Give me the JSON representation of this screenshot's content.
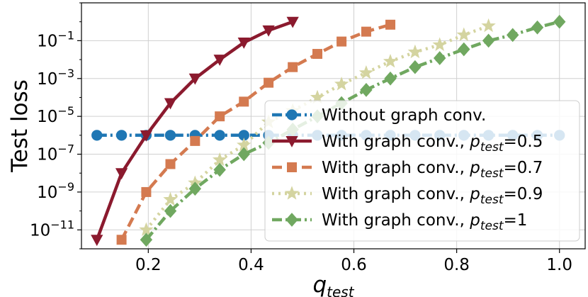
{
  "chart_data": {
    "type": "line",
    "title": "",
    "xlabel": {
      "base": "q",
      "sub": "test"
    },
    "ylabel": "Test loss",
    "yscale": "log",
    "xlim": [
      0.07,
      1.05
    ],
    "ylim": [
      1e-12,
      10
    ],
    "grid": true,
    "legend_position": "lower-right",
    "x_ticks": [
      {
        "value": 0.2,
        "label": "0.2"
      },
      {
        "value": 0.4,
        "label": "0.4"
      },
      {
        "value": 0.6,
        "label": "0.6"
      },
      {
        "value": 0.8,
        "label": "0.8"
      },
      {
        "value": 1.0,
        "label": "1.0"
      }
    ],
    "y_ticks": [
      {
        "value": 1e-11,
        "label_base": "10",
        "label_exp": "−11"
      },
      {
        "value": 1e-09,
        "label_base": "10",
        "label_exp": "−9"
      },
      {
        "value": 1e-07,
        "label_base": "10",
        "label_exp": "−7"
      },
      {
        "value": 1e-05,
        "label_base": "10",
        "label_exp": "−5"
      },
      {
        "value": 0.001,
        "label_base": "10",
        "label_exp": "−3"
      },
      {
        "value": 0.1,
        "label_base": "10",
        "label_exp": "−1"
      }
    ],
    "series": [
      {
        "name": "Without graph conv.",
        "legend_prefix": "Without graph conv.",
        "legend_sub": "",
        "legend_suffix": "",
        "color": "#1f77b4",
        "marker": "circle",
        "dash": "dashdot",
        "x": [
          0.1,
          0.148,
          0.196,
          0.243,
          0.291,
          0.339,
          0.386,
          0.434,
          0.481,
          0.529,
          0.576,
          0.624,
          0.671,
          0.719,
          0.767,
          0.814,
          0.862,
          0.909,
          0.957,
          1.0
        ],
        "y": [
          1e-06,
          1e-06,
          1e-06,
          1e-06,
          1e-06,
          1e-06,
          1e-06,
          1e-06,
          1e-06,
          1e-06,
          1e-06,
          1e-06,
          1e-06,
          1e-06,
          1e-06,
          1e-06,
          1e-06,
          1e-06,
          1e-06,
          1e-06
        ]
      },
      {
        "name": "With graph conv., p_test=0.5",
        "legend_prefix": "With graph conv., ",
        "legend_sub": "test",
        "legend_suffix": "=0.5",
        "color": "#8b1a2e",
        "marker": "triangle-down",
        "dash": "solid",
        "x": [
          0.1,
          0.148,
          0.196,
          0.243,
          0.291,
          0.339,
          0.386,
          0.434,
          0.481
        ],
        "y": [
          3e-12,
          1e-08,
          1e-06,
          5e-05,
          0.001,
          0.01,
          0.08,
          0.35,
          1.0
        ]
      },
      {
        "name": "With graph conv., p_test=0.7",
        "legend_prefix": "With graph conv., ",
        "legend_sub": "test",
        "legend_suffix": "=0.7",
        "color": "#d47a50",
        "marker": "square",
        "dash": "dashed",
        "x": [
          0.148,
          0.196,
          0.243,
          0.291,
          0.339,
          0.386,
          0.434,
          0.481,
          0.529,
          0.576,
          0.624,
          0.671
        ],
        "y": [
          3e-12,
          1e-09,
          3e-08,
          5e-07,
          1e-05,
          6e-05,
          0.0006,
          0.004,
          0.02,
          0.09,
          0.3,
          0.7
        ]
      },
      {
        "name": "With graph conv., p_test=0.9",
        "legend_prefix": "With graph conv., ",
        "legend_sub": "test",
        "legend_suffix": "=0.9",
        "color": "#d4d4a0",
        "marker": "star",
        "dash": "dotted",
        "x": [
          0.196,
          0.243,
          0.291,
          0.339,
          0.386,
          0.434,
          0.481,
          0.529,
          0.576,
          0.624,
          0.671,
          0.719,
          0.767,
          0.814,
          0.862
        ],
        "y": [
          1e-11,
          4e-10,
          3e-09,
          5e-08,
          3e-07,
          5e-06,
          2e-05,
          0.0001,
          0.0005,
          0.002,
          0.008,
          0.025,
          0.06,
          0.2,
          0.6
        ]
      },
      {
        "name": "With graph conv., p_test=1",
        "legend_prefix": "With graph conv., ",
        "legend_sub": "test",
        "legend_suffix": "=1",
        "color": "#70a860",
        "marker": "diamond",
        "dash": "dashdot",
        "x": [
          0.196,
          0.243,
          0.291,
          0.339,
          0.386,
          0.434,
          0.481,
          0.529,
          0.576,
          0.624,
          0.671,
          0.719,
          0.767,
          0.814,
          0.862,
          0.909,
          0.957,
          1.0
        ],
        "y": [
          3e-12,
          1e-10,
          1.5e-09,
          1.5e-08,
          1e-07,
          4e-07,
          2e-06,
          1e-05,
          5e-05,
          0.00025,
          0.001,
          0.004,
          0.012,
          0.035,
          0.1,
          0.2,
          0.5,
          1.0
        ]
      }
    ]
  }
}
